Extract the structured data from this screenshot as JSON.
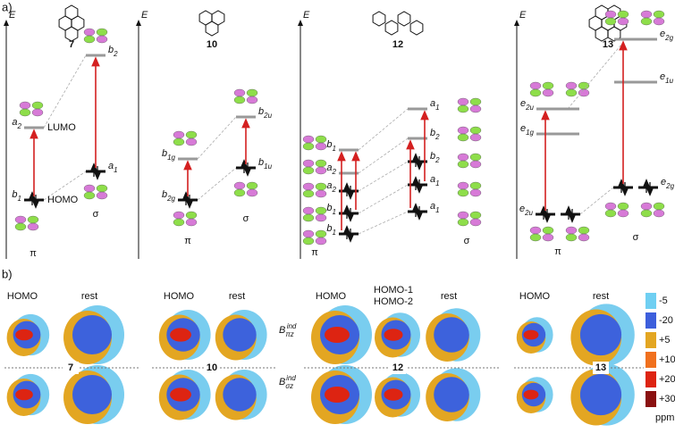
{
  "panel_a": {
    "label": "a)",
    "energy_axis": "E",
    "diagrams": [
      {
        "compound": "7",
        "pi_label": "π",
        "sigma_label": "σ",
        "pi_levels": [
          {
            "symbol": "a",
            "sub": "2",
            "tag": "LUMO"
          },
          {
            "symbol": "b",
            "sub": "1",
            "tag": "HOMO"
          }
        ],
        "sigma_levels": [
          {
            "symbol": "b",
            "sub": "2"
          },
          {
            "symbol": "a",
            "sub": "1"
          }
        ]
      },
      {
        "compound": "10",
        "pi_label": "π",
        "sigma_label": "σ",
        "pi_levels": [
          {
            "symbol": "b",
            "sub": "1g"
          },
          {
            "symbol": "b",
            "sub": "2g"
          }
        ],
        "sigma_levels": [
          {
            "symbol": "b",
            "sub": "2u"
          },
          {
            "symbol": "b",
            "sub": "1u"
          }
        ]
      },
      {
        "compound": "12",
        "pi_label": "π",
        "sigma_label": "σ",
        "pi_levels": [
          {
            "symbol": "b",
            "sub": "1"
          },
          {
            "symbol": "a",
            "sub": "2"
          },
          {
            "symbol": "a",
            "sub": "2"
          },
          {
            "symbol": "b",
            "sub": "1"
          },
          {
            "symbol": "b",
            "sub": "1"
          }
        ],
        "sigma_levels": [
          {
            "symbol": "a",
            "sub": "1"
          },
          {
            "symbol": "b",
            "sub": "2"
          },
          {
            "symbol": "b",
            "sub": "2"
          },
          {
            "symbol": "a",
            "sub": "1"
          },
          {
            "symbol": "a",
            "sub": "1"
          }
        ]
      },
      {
        "compound": "13",
        "pi_label": "π",
        "sigma_label": "σ",
        "pi_levels": [
          {
            "symbol": "e",
            "sub": "2u"
          },
          {
            "symbol": "e",
            "sub": "1g"
          },
          {
            "symbol": "e",
            "sub": "2u"
          }
        ],
        "sigma_levels": [
          {
            "symbol": "e",
            "sub": "2g"
          },
          {
            "symbol": "e",
            "sub": "1u"
          },
          {
            "symbol": "e",
            "sub": "2g"
          }
        ]
      }
    ]
  },
  "panel_b": {
    "label": "b)",
    "columns": [
      {
        "compound": "7",
        "headers": [
          "HOMO",
          "rest"
        ]
      },
      {
        "compound": "10",
        "headers": [
          "HOMO",
          "rest"
        ]
      },
      {
        "compound": "12",
        "headers": [
          "HOMO",
          "HOMO-1",
          "HOMO-2",
          "rest"
        ]
      },
      {
        "compound": "13",
        "headers": [
          "HOMO",
          "rest"
        ]
      }
    ],
    "row_labels": [
      {
        "symbol": "B",
        "sub": "πz",
        "sup": "ind"
      },
      {
        "symbol": "B",
        "sub": "σz",
        "sup": "ind"
      }
    ],
    "legend": {
      "entries": [
        {
          "label": "-5",
          "color": "#6fcff2"
        },
        {
          "label": "-20",
          "color": "#3d5fdc"
        },
        {
          "label": "+5",
          "color": "#e3a622"
        },
        {
          "label": "+10",
          "color": "#f0701e"
        },
        {
          "label": "+20",
          "color": "#dd2412"
        },
        {
          "label": "+30",
          "color": "#8a1010"
        }
      ],
      "unit": "ppm"
    }
  }
}
